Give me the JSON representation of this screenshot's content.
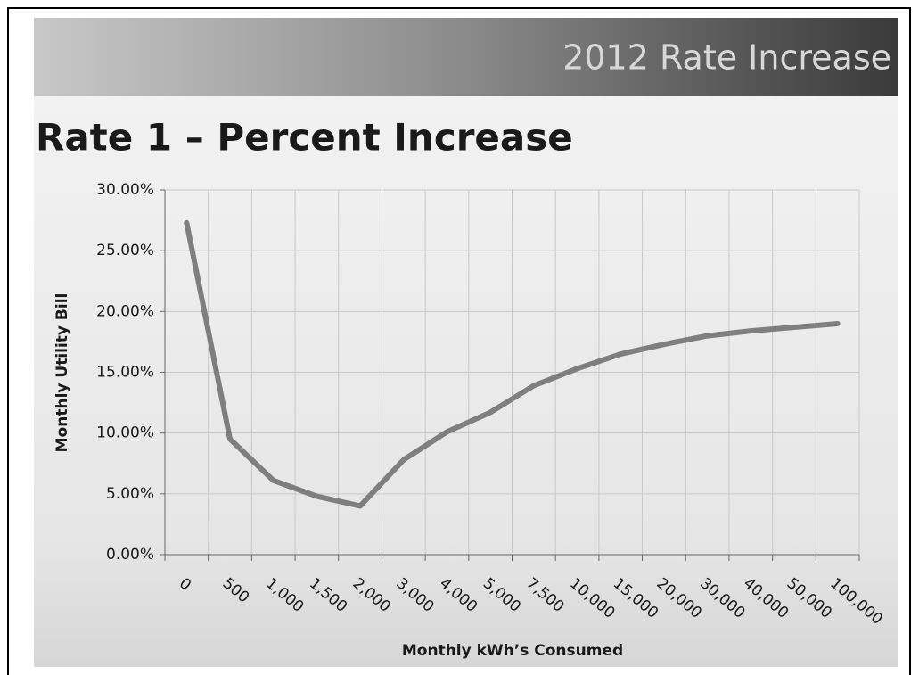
{
  "header": "2012 Rate Increase",
  "chart_data": {
    "type": "line",
    "title": "Rate 1 – Percent Increase",
    "x_label": "Monthly kWh’s Consumed",
    "y_label": "Monthly Utility Bill",
    "categories": [
      "0",
      "500",
      "1,000",
      "1,500",
      "2,000",
      "3,000",
      "4,000",
      "5,000",
      "7,500",
      "10,000",
      "15,000",
      "20,000",
      "30,000",
      "40,000",
      "50,000",
      "100,000"
    ],
    "values": [
      27.3,
      9.5,
      6.1,
      4.8,
      4.0,
      7.8,
      10.1,
      11.7,
      13.9,
      15.3,
      16.5,
      17.3,
      18.0,
      18.4,
      18.7,
      19.0
    ],
    "color": "#7f7f7f",
    "ylim": [
      0,
      30
    ],
    "yticks": [
      {
        "value": 0,
        "label": "0.00%"
      },
      {
        "value": 5,
        "label": "5.00%"
      },
      {
        "value": 10,
        "label": "10.00%"
      },
      {
        "value": 15,
        "label": "15.00%"
      },
      {
        "value": 20,
        "label": "20.00%"
      },
      {
        "value": 25,
        "label": "25.00%"
      },
      {
        "value": 30,
        "label": "30.00%"
      }
    ],
    "grid": true
  }
}
